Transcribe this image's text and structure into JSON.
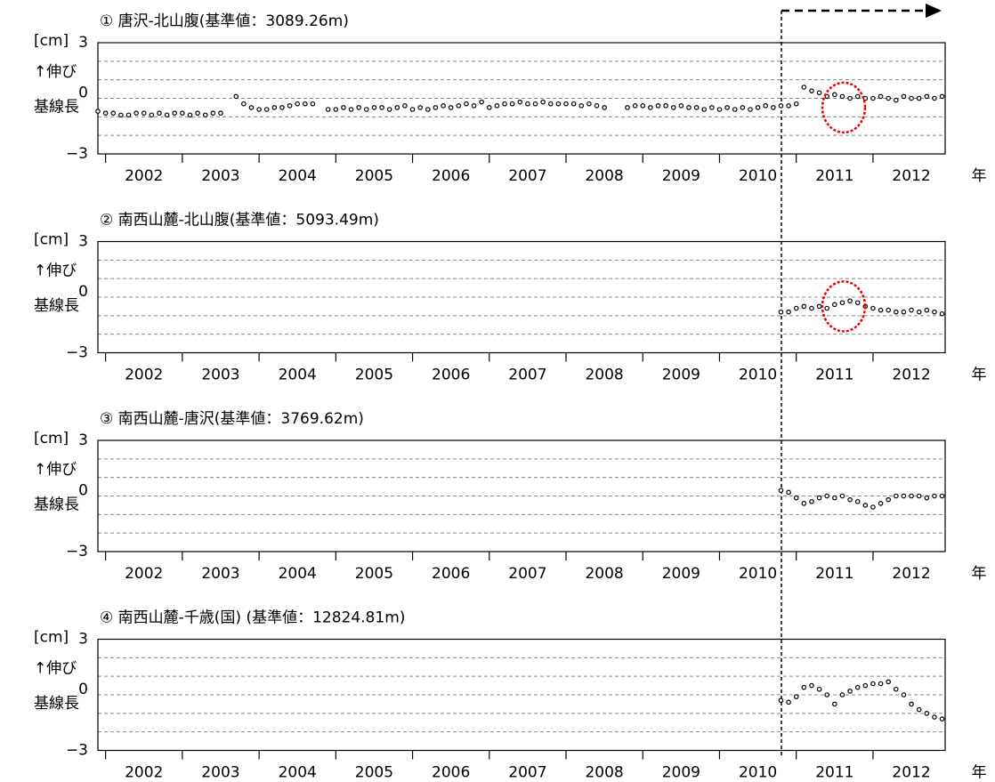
{
  "chart_data": [
    {
      "type": "scatter",
      "title": "①  唐沢-北山腹(基準値：3089.26m)",
      "ylabel": [
        "[cm]",
        "↑伸び",
        "基線長"
      ],
      "xlabel": "年",
      "xlim": [
        2001.9,
        2012.94
      ],
      "ylim": [
        -3,
        3
      ],
      "yticks": [
        {
          "value": -3,
          "label": "−3"
        },
        0,
        3
      ],
      "ygrid": [
        -2,
        -1,
        1,
        2
      ],
      "xtick_marks": [
        2002,
        2003,
        2004,
        2005,
        2006,
        2007,
        2008,
        2009,
        2010,
        2011,
        2012
      ],
      "xticks": [
        {
          "value": 2002.5,
          "label": "2002"
        },
        {
          "value": 2003.5,
          "label": "2003"
        },
        {
          "value": 2004.5,
          "label": "2004"
        },
        {
          "value": 2005.5,
          "label": "2005"
        },
        {
          "value": 2006.5,
          "label": "2006"
        },
        {
          "value": 2007.5,
          "label": "2007"
        },
        {
          "value": 2008.5,
          "label": "2008"
        },
        {
          "value": 2009.5,
          "label": "2009"
        },
        {
          "value": 2010.5,
          "label": "2010"
        },
        {
          "value": 2011.5,
          "label": "2011"
        },
        {
          "value": 2012.5,
          "label": "2012"
        }
      ],
      "color": "#000000",
      "x": [
        2001.9,
        2002.0,
        2002.1,
        2002.2,
        2002.3,
        2002.4,
        2002.5,
        2002.6,
        2002.7,
        2002.8,
        2002.9,
        2003.0,
        2003.1,
        2003.2,
        2003.3,
        2003.4,
        2003.5,
        2003.7,
        2003.8,
        2003.9,
        2004.0,
        2004.1,
        2004.2,
        2004.3,
        2004.4,
        2004.5,
        2004.6,
        2004.7,
        2004.9,
        2005.0,
        2005.1,
        2005.2,
        2005.3,
        2005.4,
        2005.5,
        2005.6,
        2005.7,
        2005.8,
        2005.9,
        2006.0,
        2006.1,
        2006.2,
        2006.3,
        2006.4,
        2006.5,
        2006.6,
        2006.7,
        2006.8,
        2006.9,
        2007.0,
        2007.1,
        2007.2,
        2007.3,
        2007.4,
        2007.5,
        2007.6,
        2007.7,
        2007.8,
        2007.9,
        2008.0,
        2008.1,
        2008.2,
        2008.3,
        2008.4,
        2008.5,
        2008.8,
        2008.9,
        2009.0,
        2009.1,
        2009.2,
        2009.3,
        2009.4,
        2009.5,
        2009.6,
        2009.7,
        2009.8,
        2009.9,
        2010.0,
        2010.1,
        2010.2,
        2010.3,
        2010.4,
        2010.5,
        2010.6,
        2010.7,
        2010.8,
        2010.9,
        2011.0,
        2011.1,
        2011.2,
        2011.3,
        2011.4,
        2011.5,
        2011.6,
        2011.7,
        2011.8,
        2011.9,
        2012.0,
        2012.1,
        2012.2,
        2012.3,
        2012.4,
        2012.5,
        2012.6,
        2012.7,
        2012.8,
        2012.9
      ],
      "values": [
        -0.7,
        -0.8,
        -0.8,
        -0.9,
        -0.9,
        -0.8,
        -0.8,
        -0.9,
        -0.8,
        -0.9,
        -0.8,
        -0.8,
        -0.9,
        -0.8,
        -0.9,
        -0.8,
        -0.8,
        0.1,
        -0.3,
        -0.5,
        -0.6,
        -0.6,
        -0.5,
        -0.5,
        -0.4,
        -0.3,
        -0.3,
        -0.3,
        -0.6,
        -0.6,
        -0.5,
        -0.6,
        -0.5,
        -0.6,
        -0.5,
        -0.5,
        -0.6,
        -0.5,
        -0.4,
        -0.6,
        -0.5,
        -0.6,
        -0.5,
        -0.4,
        -0.5,
        -0.4,
        -0.3,
        -0.4,
        -0.2,
        -0.5,
        -0.4,
        -0.3,
        -0.3,
        -0.2,
        -0.3,
        -0.3,
        -0.2,
        -0.3,
        -0.3,
        -0.3,
        -0.3,
        -0.4,
        -0.3,
        -0.4,
        -0.5,
        -0.5,
        -0.4,
        -0.4,
        -0.5,
        -0.4,
        -0.4,
        -0.5,
        -0.4,
        -0.5,
        -0.5,
        -0.6,
        -0.5,
        -0.6,
        -0.5,
        -0.6,
        -0.5,
        -0.6,
        -0.5,
        -0.4,
        -0.5,
        -0.4,
        -0.4,
        -0.3,
        0.6,
        0.4,
        0.3,
        0.1,
        0.2,
        0.1,
        0.0,
        0.1,
        0.0,
        0.0,
        0.1,
        0.0,
        -0.1,
        0.1,
        0.0,
        0.0,
        0.1,
        0.0,
        0.1
      ]
    },
    {
      "type": "scatter",
      "title": "②  南西山麓-北山腹(基準値：5093.49m)",
      "ylabel": [
        "[cm]",
        "↑伸び",
        "基線長"
      ],
      "xlabel": "年",
      "xlim": [
        2001.9,
        2012.94
      ],
      "ylim": [
        -3,
        3
      ],
      "yticks": [
        {
          "value": -3,
          "label": "−3"
        },
        0,
        3
      ],
      "ygrid": [
        -2,
        -1,
        1,
        2
      ],
      "xtick_marks": [
        2002,
        2003,
        2004,
        2005,
        2006,
        2007,
        2008,
        2009,
        2010,
        2011,
        2012
      ],
      "xticks": [
        {
          "value": 2002.5,
          "label": "2002"
        },
        {
          "value": 2003.5,
          "label": "2003"
        },
        {
          "value": 2004.5,
          "label": "2004"
        },
        {
          "value": 2005.5,
          "label": "2005"
        },
        {
          "value": 2006.5,
          "label": "2006"
        },
        {
          "value": 2007.5,
          "label": "2007"
        },
        {
          "value": 2008.5,
          "label": "2008"
        },
        {
          "value": 2009.5,
          "label": "2009"
        },
        {
          "value": 2010.5,
          "label": "2010"
        },
        {
          "value": 2011.5,
          "label": "2011"
        },
        {
          "value": 2012.5,
          "label": "2012"
        }
      ],
      "color": "#000000",
      "x": [
        2010.8,
        2010.9,
        2011.0,
        2011.1,
        2011.2,
        2011.3,
        2011.4,
        2011.5,
        2011.6,
        2011.7,
        2011.8,
        2011.9,
        2012.0,
        2012.1,
        2012.2,
        2012.3,
        2012.4,
        2012.5,
        2012.6,
        2012.7,
        2012.8,
        2012.9
      ],
      "values": [
        -0.8,
        -0.8,
        -0.6,
        -0.5,
        -0.6,
        -0.5,
        -0.6,
        -0.4,
        -0.3,
        -0.2,
        -0.3,
        -0.5,
        -0.6,
        -0.7,
        -0.7,
        -0.8,
        -0.8,
        -0.7,
        -0.8,
        -0.7,
        -0.8,
        -0.9
      ]
    },
    {
      "type": "scatter",
      "title": "③  南西山麓-唐沢(基準値：3769.62m)",
      "ylabel": [
        "[cm]",
        "↑伸び",
        "基線長"
      ],
      "xlabel": "年",
      "xlim": [
        2001.9,
        2012.94
      ],
      "ylim": [
        -3,
        3
      ],
      "yticks": [
        {
          "value": -3,
          "label": "−3"
        },
        0,
        3
      ],
      "ygrid": [
        -2,
        -1,
        1,
        2
      ],
      "xtick_marks": [
        2002,
        2003,
        2004,
        2005,
        2006,
        2007,
        2008,
        2009,
        2010,
        2011,
        2012
      ],
      "xticks": [
        {
          "value": 2002.5,
          "label": "2002"
        },
        {
          "value": 2003.5,
          "label": "2003"
        },
        {
          "value": 2004.5,
          "label": "2004"
        },
        {
          "value": 2005.5,
          "label": "2005"
        },
        {
          "value": 2006.5,
          "label": "2006"
        },
        {
          "value": 2007.5,
          "label": "2007"
        },
        {
          "value": 2008.5,
          "label": "2008"
        },
        {
          "value": 2009.5,
          "label": "2009"
        },
        {
          "value": 2010.5,
          "label": "2010"
        },
        {
          "value": 2011.5,
          "label": "2011"
        },
        {
          "value": 2012.5,
          "label": "2012"
        }
      ],
      "color": "#000000",
      "x": [
        2010.8,
        2010.9,
        2011.0,
        2011.1,
        2011.2,
        2011.3,
        2011.4,
        2011.5,
        2011.6,
        2011.7,
        2011.8,
        2011.9,
        2012.0,
        2012.1,
        2012.2,
        2012.3,
        2012.4,
        2012.5,
        2012.6,
        2012.7,
        2012.8,
        2012.9
      ],
      "values": [
        0.3,
        0.2,
        -0.1,
        -0.4,
        -0.3,
        -0.1,
        0.0,
        -0.1,
        0.0,
        -0.2,
        -0.3,
        -0.5,
        -0.6,
        -0.4,
        -0.2,
        0.0,
        0.0,
        0.0,
        0.0,
        -0.1,
        0.0,
        0.0
      ]
    },
    {
      "type": "scatter",
      "title": "④  南西山麓-千歳(国) (基準値：12824.81m)",
      "ylabel": [
        "[cm]",
        "↑伸び",
        "基線長"
      ],
      "xlabel": "年",
      "xlim": [
        2001.9,
        2012.94
      ],
      "ylim": [
        -3,
        3
      ],
      "yticks": [
        {
          "value": -3,
          "label": "−3"
        },
        0,
        3
      ],
      "ygrid": [
        -2,
        -1,
        1,
        2
      ],
      "xtick_marks": [
        2002,
        2003,
        2004,
        2005,
        2006,
        2007,
        2008,
        2009,
        2010,
        2011,
        2012
      ],
      "xticks": [
        {
          "value": 2002.5,
          "label": "2002"
        },
        {
          "value": 2003.5,
          "label": "2003"
        },
        {
          "value": 2004.5,
          "label": "2004"
        },
        {
          "value": 2005.5,
          "label": "2005"
        },
        {
          "value": 2006.5,
          "label": "2006"
        },
        {
          "value": 2007.5,
          "label": "2007"
        },
        {
          "value": 2008.5,
          "label": "2008"
        },
        {
          "value": 2009.5,
          "label": "2009"
        },
        {
          "value": 2010.5,
          "label": "2010"
        },
        {
          "value": 2011.5,
          "label": "2011"
        },
        {
          "value": 2012.5,
          "label": "2012"
        }
      ],
      "color": "#000000",
      "x": [
        2010.8,
        2010.9,
        2011.0,
        2011.1,
        2011.2,
        2011.3,
        2011.4,
        2011.5,
        2011.6,
        2011.7,
        2011.8,
        2011.9,
        2012.0,
        2012.1,
        2012.2,
        2012.3,
        2012.4,
        2012.5,
        2012.6,
        2012.7,
        2012.8,
        2012.9
      ],
      "values": [
        -0.3,
        -0.4,
        -0.1,
        0.4,
        0.5,
        0.3,
        0.0,
        -0.5,
        0.0,
        0.2,
        0.4,
        0.5,
        0.6,
        0.6,
        0.7,
        0.3,
        0.0,
        -0.5,
        -0.8,
        -1.0,
        -1.2,
        -1.3
      ]
    }
  ]
}
